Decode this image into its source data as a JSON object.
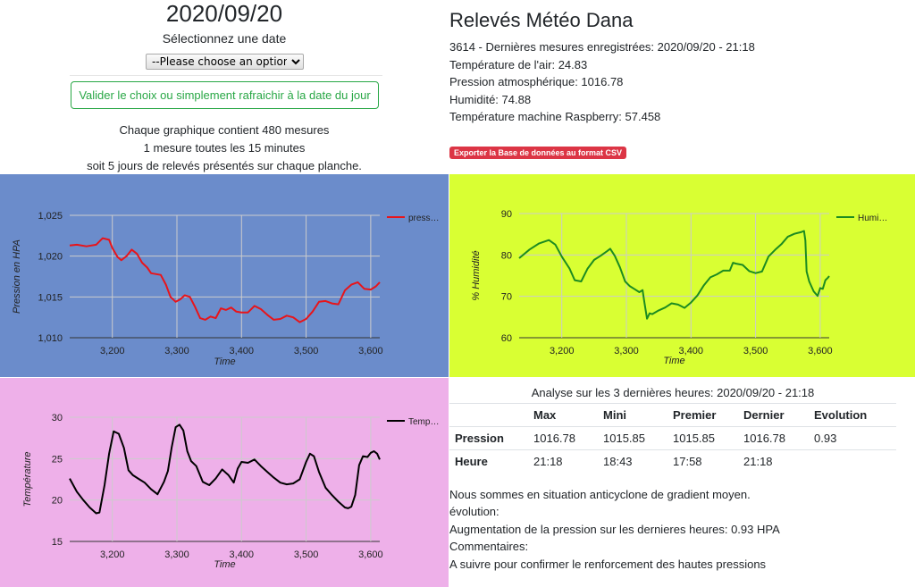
{
  "header": {
    "date": "2020/09/20",
    "select_label": "Sélectionnez une date",
    "select_placeholder": "--Please choose an option--",
    "validate_button": "Valider le choix ou simplement rafraichir à la date du jour",
    "info_lines": [
      "Chaque graphique contient 480 mesures",
      "1 mesure toutes les 15 minutes",
      "soit 5 jours de relevés présentés sur chaque planche."
    ]
  },
  "station": {
    "title": "Relevés Météo Dana",
    "latest": "3614 - Dernières mesures enregistrées: 2020/09/20 - 21:18",
    "air_temperature": "Température de l'air: 24.83",
    "pressure": "Pression atmosphérique: 1016.78",
    "humidity": "Humidité: 74.88",
    "machine_temperature": "Température machine Raspberry: 57.458",
    "export_button": "Exporter la Base de données au format CSV"
  },
  "chart_data": [
    {
      "id": "pressure",
      "type": "line",
      "xlabel": "Time",
      "ylabel": "Pression en HPA",
      "xlim": [
        3134,
        3614
      ],
      "ylim": [
        1010,
        1025
      ],
      "xticks": [
        3200,
        3300,
        3400,
        3500,
        3600
      ],
      "xtick_labels": [
        "3,200",
        "3,300",
        "3,400",
        "3,500",
        "3,600"
      ],
      "yticks": [
        1010,
        1015,
        1020,
        1025
      ],
      "ytick_labels": [
        "1,010",
        "1,015",
        "1,020",
        "1,025"
      ],
      "legend_position": "right",
      "grid": true,
      "series": [
        {
          "name": "press…",
          "color": "#e8141a",
          "x": [
            3134,
            3145,
            3160,
            3175,
            3185,
            3195,
            3200,
            3208,
            3214,
            3222,
            3230,
            3238,
            3246,
            3254,
            3260,
            3268,
            3275,
            3283,
            3290,
            3298,
            3305,
            3312,
            3320,
            3328,
            3336,
            3344,
            3352,
            3360,
            3368,
            3376,
            3384,
            3392,
            3400,
            3410,
            3420,
            3430,
            3440,
            3450,
            3460,
            3470,
            3480,
            3490,
            3500,
            3510,
            3520,
            3530,
            3540,
            3550,
            3560,
            3570,
            3580,
            3590,
            3600,
            3608,
            3614
          ],
          "y": [
            1021.3,
            1021.4,
            1021.2,
            1021.4,
            1022.2,
            1022.0,
            1021.0,
            1019.9,
            1019.5,
            1020.0,
            1020.8,
            1020.3,
            1019.2,
            1018.6,
            1017.9,
            1017.8,
            1017.7,
            1016.5,
            1015.0,
            1014.4,
            1014.7,
            1015.2,
            1015.0,
            1013.8,
            1012.4,
            1012.2,
            1012.6,
            1012.4,
            1013.6,
            1013.4,
            1013.7,
            1013.2,
            1013.1,
            1013.1,
            1013.9,
            1013.5,
            1012.8,
            1012.2,
            1012.3,
            1012.7,
            1012.5,
            1011.9,
            1012.3,
            1013.2,
            1014.4,
            1014.5,
            1014.2,
            1014.1,
            1015.8,
            1016.5,
            1016.8,
            1016.0,
            1015.9,
            1016.3,
            1016.8
          ]
        }
      ]
    },
    {
      "id": "humidity",
      "type": "line",
      "xlabel": "Time",
      "ylabel": "% Humidité",
      "xlim": [
        3134,
        3614
      ],
      "ylim": [
        60,
        90
      ],
      "xticks": [
        3200,
        3300,
        3400,
        3500,
        3600
      ],
      "xtick_labels": [
        "3,200",
        "3,300",
        "3,400",
        "3,500",
        "3,600"
      ],
      "yticks": [
        60,
        70,
        80,
        90
      ],
      "ytick_labels": [
        "60",
        "70",
        "80",
        "90"
      ],
      "legend_position": "right",
      "grid": true,
      "series": [
        {
          "name": "Humi…",
          "color": "#1c8b21",
          "x": [
            3134,
            3150,
            3165,
            3180,
            3190,
            3200,
            3212,
            3220,
            3230,
            3240,
            3250,
            3260,
            3270,
            3275,
            3282,
            3290,
            3298,
            3305,
            3312,
            3320,
            3325,
            3328,
            3332,
            3336,
            3340,
            3350,
            3360,
            3370,
            3380,
            3390,
            3400,
            3410,
            3420,
            3430,
            3440,
            3450,
            3460,
            3465,
            3470,
            3480,
            3490,
            3500,
            3510,
            3520,
            3530,
            3540,
            3550,
            3560,
            3570,
            3575,
            3577,
            3579,
            3583,
            3590,
            3596,
            3600,
            3604,
            3608,
            3612,
            3614
          ],
          "y": [
            79.2,
            81.3,
            82.8,
            83.6,
            82.5,
            79.6,
            76.7,
            73.9,
            73.6,
            76.7,
            78.8,
            79.8,
            80.9,
            81.5,
            79.8,
            77.0,
            73.6,
            72.5,
            71.8,
            71.0,
            71.5,
            68.5,
            64.6,
            65.9,
            65.7,
            66.6,
            67.3,
            68.3,
            68.0,
            67.2,
            68.5,
            70.2,
            72.7,
            74.6,
            75.3,
            76.2,
            76.2,
            78.1,
            77.9,
            77.6,
            76.1,
            75.6,
            76.0,
            79.6,
            81.2,
            82.6,
            84.4,
            85.1,
            85.5,
            85.8,
            83.5,
            76.0,
            73.6,
            71.2,
            70.1,
            72.0,
            71.8,
            73.9,
            74.5,
            74.9
          ]
        }
      ]
    },
    {
      "id": "temperature",
      "type": "line",
      "xlabel": "Time",
      "ylabel": "Température",
      "xlim": [
        3134,
        3614
      ],
      "ylim": [
        15,
        30
      ],
      "xticks": [
        3200,
        3300,
        3400,
        3500,
        3600
      ],
      "xtick_labels": [
        "3,200",
        "3,300",
        "3,400",
        "3,500",
        "3,600"
      ],
      "yticks": [
        15,
        20,
        25,
        30
      ],
      "ytick_labels": [
        "15",
        "20",
        "25",
        "30"
      ],
      "legend_position": "right",
      "grid": true,
      "series": [
        {
          "name": "Temp…",
          "color": "#000000",
          "x": [
            3134,
            3145,
            3155,
            3165,
            3175,
            3180,
            3188,
            3195,
            3202,
            3210,
            3218,
            3225,
            3232,
            3240,
            3250,
            3260,
            3270,
            3280,
            3286,
            3292,
            3298,
            3304,
            3310,
            3316,
            3322,
            3330,
            3340,
            3350,
            3360,
            3370,
            3380,
            3388,
            3394,
            3400,
            3410,
            3420,
            3430,
            3440,
            3450,
            3460,
            3470,
            3480,
            3490,
            3500,
            3506,
            3512,
            3520,
            3530,
            3540,
            3550,
            3560,
            3565,
            3570,
            3576,
            3582,
            3588,
            3595,
            3600,
            3605,
            3610,
            3614
          ],
          "y": [
            22.6,
            21.0,
            20.0,
            19.1,
            18.4,
            18.5,
            21.8,
            25.6,
            28.3,
            28.0,
            26.3,
            23.6,
            23.0,
            22.6,
            22.1,
            21.3,
            20.7,
            22.2,
            23.5,
            26.4,
            28.8,
            29.1,
            28.4,
            25.9,
            24.7,
            24.1,
            22.2,
            21.8,
            22.6,
            23.7,
            23.0,
            22.1,
            23.8,
            24.6,
            24.5,
            24.9,
            24.1,
            23.4,
            22.7,
            22.1,
            21.9,
            22.0,
            22.5,
            24.6,
            25.6,
            25.3,
            23.4,
            21.5,
            20.6,
            19.8,
            19.1,
            19.0,
            19.2,
            20.6,
            24.2,
            25.3,
            25.2,
            25.7,
            25.9,
            25.6,
            24.9
          ]
        }
      ]
    }
  ],
  "analysis": {
    "title": "Analyse sur les 3 dernières heures: 2020/09/20 - 21:18",
    "columns": [
      "",
      "Max",
      "Mini",
      "Premier",
      "Dernier",
      "Evolution"
    ],
    "rows": [
      {
        "label": "Pression",
        "cells": [
          "1016.78",
          "1015.85",
          "1015.85",
          "1016.78",
          "0.93"
        ]
      },
      {
        "label": "Heure",
        "cells": [
          "21:18",
          "18:43",
          "17:58",
          "21:18",
          ""
        ]
      }
    ],
    "comments": [
      "Nous sommes en situation anticyclone de gradient moyen.",
      "évolution:",
      "Augmentation de la pression sur les dernieres heures: 0.93 HPA",
      "Commentaires:",
      "A suivre pour confirmer le renforcement des hautes pressions"
    ]
  }
}
